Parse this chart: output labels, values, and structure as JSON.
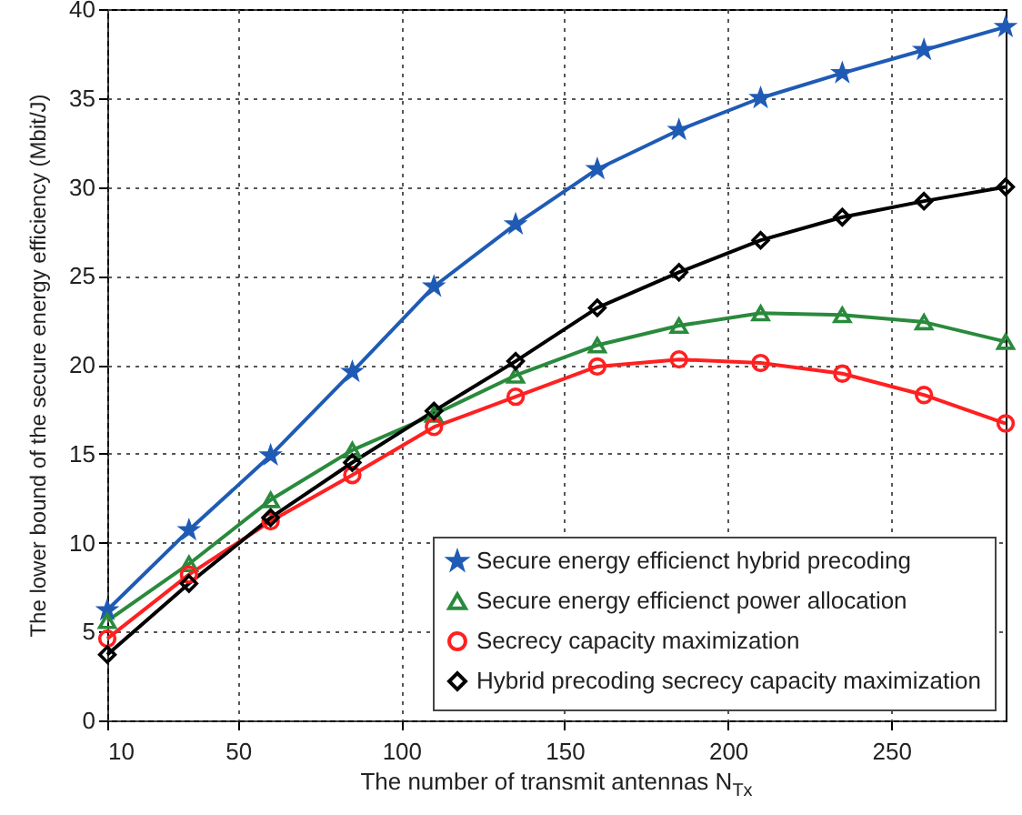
{
  "chart_data": {
    "type": "line",
    "xlabel": "The number of transmit antennas N$_{Tx}$",
    "ylabel": "The lower bound of the secure energy efficiency (Mbit/J)",
    "x": [
      10,
      35,
      60,
      85,
      110,
      135,
      160,
      185,
      210,
      235,
      260,
      285
    ],
    "xlim": [
      10,
      285
    ],
    "xticks": [
      10,
      50,
      100,
      150,
      200,
      250
    ],
    "ylim": [
      0,
      40
    ],
    "yticks": [
      0,
      5,
      10,
      15,
      20,
      25,
      30,
      35,
      40
    ],
    "grid": true,
    "legend": "bottom right",
    "series": [
      {
        "name": "Secure energy efficienct hybrid precoding",
        "color": "#1f5bb5",
        "marker": "star",
        "values": [
          6.2,
          10.7,
          14.9,
          19.6,
          24.4,
          27.9,
          31.0,
          33.2,
          35.0,
          36.4,
          37.7,
          39.0
        ]
      },
      {
        "name": "Secure energy efficienct power allocation",
        "color": "#2a8a3c",
        "marker": "triangle",
        "values": [
          5.6,
          8.8,
          12.4,
          15.2,
          17.2,
          19.4,
          21.1,
          22.2,
          22.9,
          22.8,
          22.4,
          21.3
        ]
      },
      {
        "name": "Secrecy capacity maximization",
        "color": "#ff2020",
        "marker": "circle",
        "values": [
          4.6,
          8.2,
          11.2,
          13.8,
          16.5,
          18.2,
          19.9,
          20.3,
          20.1,
          19.5,
          18.3,
          16.7
        ]
      },
      {
        "name": "Hybrid precoding secrecy capacity maximization",
        "color": "#000000",
        "marker": "diamond",
        "values": [
          3.7,
          7.7,
          11.4,
          14.5,
          17.4,
          20.2,
          23.2,
          25.2,
          27.0,
          28.3,
          29.2,
          30.0
        ]
      }
    ]
  }
}
